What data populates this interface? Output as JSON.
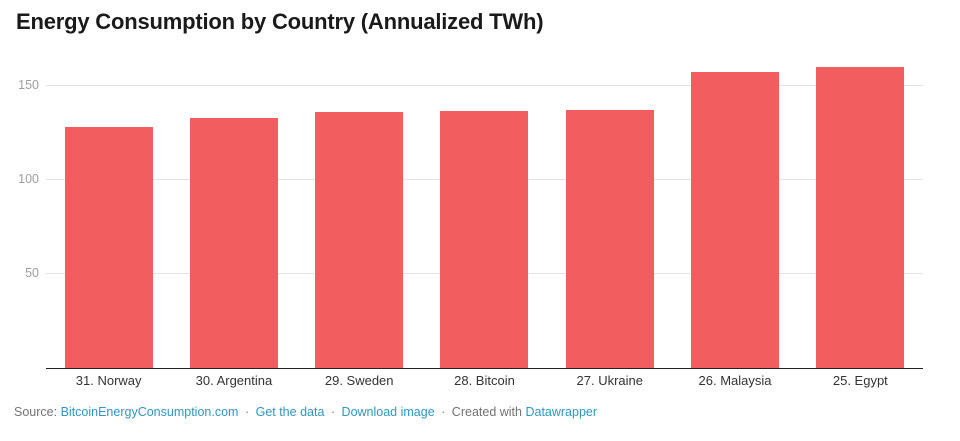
{
  "title": "Energy Consumption by Country (Annualized TWh)",
  "chart_data": {
    "type": "bar",
    "title": "Energy Consumption by Country (Annualized TWh)",
    "categories": [
      "31. Norway",
      "30. Argentina",
      "29. Sweden",
      "28. Bitcoin",
      "27. Ukraine",
      "26. Malaysia",
      "25. Egypt"
    ],
    "values": [
      128,
      132.7,
      136.3,
      136.6,
      137.3,
      157.5,
      160
    ],
    "xlabel": "",
    "ylabel": "",
    "yticks": [
      50,
      100,
      150
    ],
    "ylim": [
      0,
      163.8
    ],
    "grid": true,
    "legend": "none",
    "bar_color": "#f25e5f"
  },
  "footer": {
    "source_label": "Source:",
    "source_link": "BitcoinEnergyConsumption.com",
    "sep1": "·",
    "get_data_link": "Get the data",
    "sep2": "·",
    "download_link": "Download image",
    "sep3": "·",
    "created_with_label": "Created with",
    "datawrapper_link": "Datawrapper"
  },
  "colors": {
    "bar": "#f25e5f",
    "link": "#2f97c1",
    "muted_text": "#737373",
    "tick_label": "#9e9e9e",
    "gridline": "#e4e4e4",
    "axis_line": "#222222",
    "title_text": "#1a1a1a",
    "x_label_text": "#333333"
  }
}
